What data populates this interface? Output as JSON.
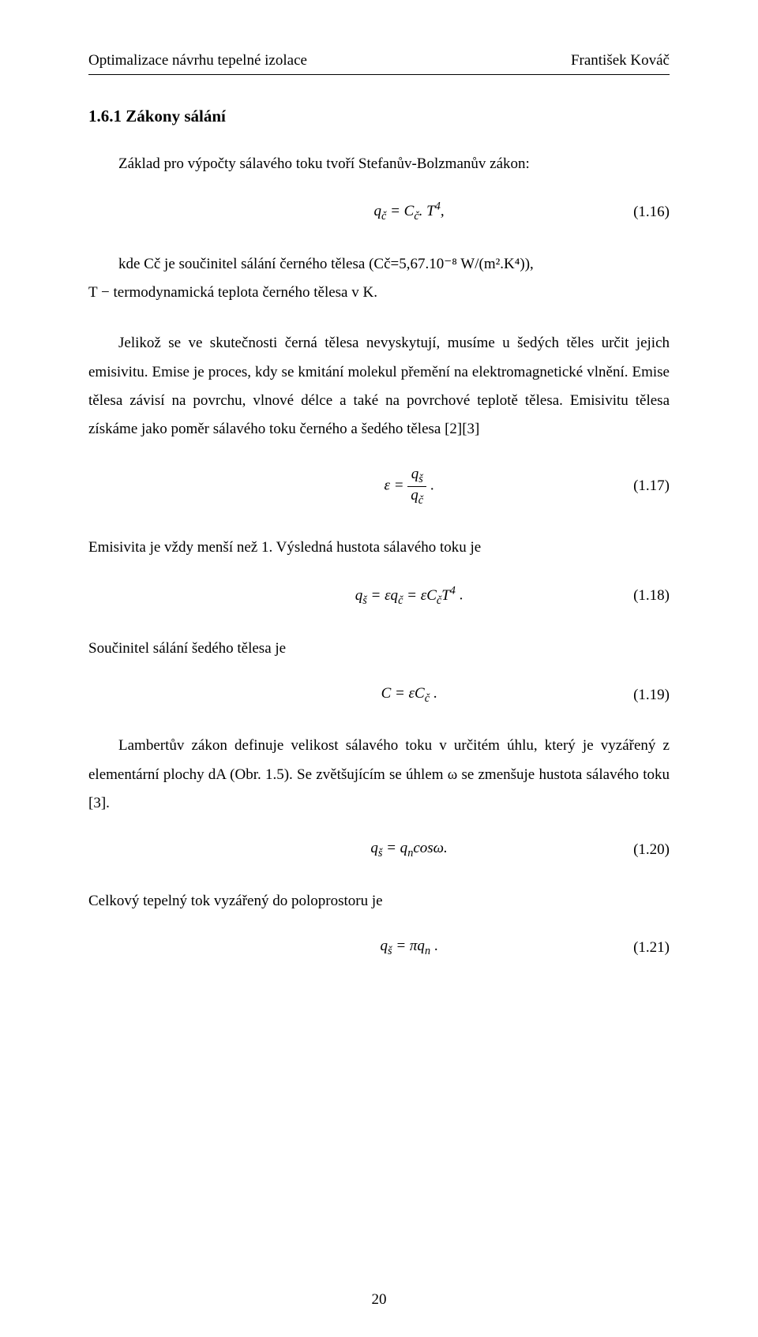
{
  "header": {
    "left": "Optimalizace návrhu tepelné izolace",
    "right": "František Kováč"
  },
  "section": {
    "number_title": "1.6.1 Zákony sálání"
  },
  "paragraphs": {
    "p1": "Základ pro výpočty sálavého toku tvoří Stefanův-Bolzmanův zákon:",
    "def1": "kde Cč je součinitel sálání černého tělesa (Cč=5,67.10⁻⁸ W/(m².K⁴)),",
    "def2": "T − termodynamická teplota černého tělesa v K.",
    "p2": "Jelikož se ve skutečnosti černá tělesa nevyskytují, musíme u šedých těles určit jejich emisivitu. Emise je proces, kdy se kmitání molekul přemění na elektromagnetické vlnění. Emise tělesa závisí na povrchu, vlnové délce a také na povrchové teplotě tělesa. Emisivitu tělesa získáme jako poměr sálavého toku černého a šedého tělesa [2][3]",
    "p3": "Emisivita je vždy menší než 1. Výsledná hustota sálavého toku je",
    "p4": "Součinitel sálání šedého tělesa je",
    "p5": "Lambertův zákon definuje velikost sálavého toku v určitém úhlu, který je vyzářený z elementární plochy dA (Obr. 1.5). Se zvětšujícím se úhlem ω se zmenšuje hustota sálavého toku [3].",
    "p6": "Celkový tepelný tok vyzářený do poloprostoru je"
  },
  "equations": {
    "eq16": {
      "num": "(1.16)"
    },
    "eq17": {
      "num": "(1.17)"
    },
    "eq18": {
      "num": "(1.18)"
    },
    "eq19": {
      "num": "(1.19)"
    },
    "eq20": {
      "num": "(1.20)"
    },
    "eq21": {
      "num": "(1.21)"
    },
    "frac17": {
      "top": "qš",
      "bot": "qč"
    }
  },
  "eqtext": {
    "eq16_pre": "q",
    "eq16_sub1": "č",
    "eq16_mid": " = C",
    "eq16_sub2": "č",
    "eq16_post": ". T",
    "eq16_exp": "4",
    "eq16_tail": ",",
    "eq17_pre": "ε = ",
    "eq17_tail": ".",
    "eq18_a": "q",
    "eq18_s1": "š",
    "eq18_b": " = εq",
    "eq18_s2": "č",
    "eq18_c": " = εC",
    "eq18_s3": "č",
    "eq18_d": "T",
    "eq18_e": "4",
    "eq18_f": ".",
    "eq19_a": "C = εC",
    "eq19_s": "č",
    "eq19_b": ".",
    "eq20_a": "q",
    "eq20_s1": "š",
    "eq20_b": " = q",
    "eq20_s2": "n",
    "eq20_c": "cosω.",
    "eq21_a": "q",
    "eq21_s1": "š",
    "eq21_b": " = πq",
    "eq21_s2": "n",
    "eq21_c": "."
  },
  "page_number": "20"
}
